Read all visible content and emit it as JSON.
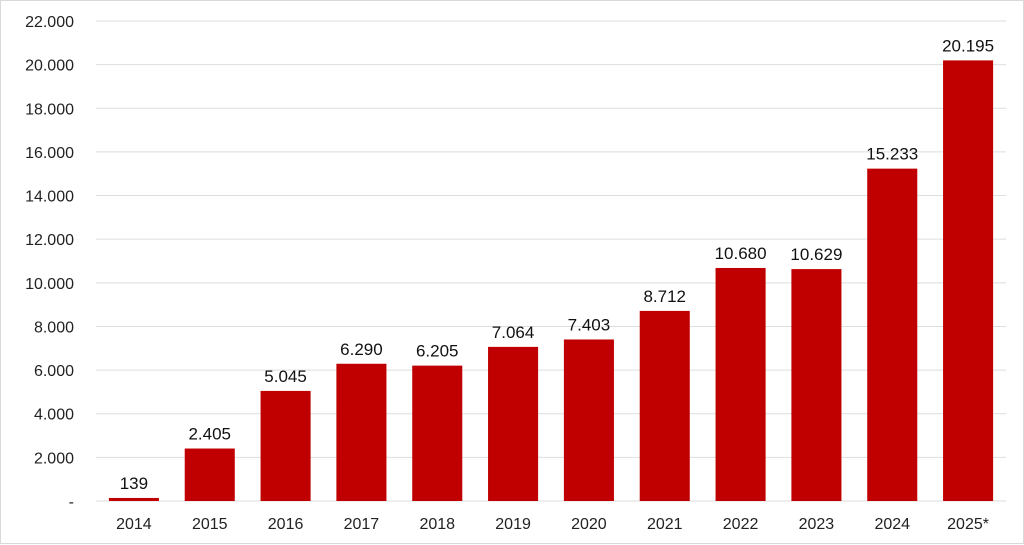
{
  "chart_data": {
    "type": "bar",
    "title": "",
    "xlabel": "",
    "ylabel": "",
    "categories": [
      "2014",
      "2015",
      "2016",
      "2017",
      "2018",
      "2019",
      "2020",
      "2021",
      "2022",
      "2023",
      "2024",
      "2025*"
    ],
    "values": [
      139,
      2405,
      5045,
      6290,
      6205,
      7064,
      7403,
      8712,
      10680,
      10629,
      15233,
      20195
    ],
    "data_labels": [
      "139",
      "2.405",
      "5.045",
      "6.290",
      "6.205",
      "7.064",
      "7.403",
      "8.712",
      "10.680",
      "10.629",
      "15.233",
      "20.195"
    ],
    "ylim": [
      0,
      22000
    ],
    "yticks": [
      0,
      2000,
      4000,
      6000,
      8000,
      10000,
      12000,
      14000,
      16000,
      18000,
      20000,
      22000
    ],
    "ytick_labels": [
      "-",
      "2.000",
      "4.000",
      "6.000",
      "8.000",
      "10.000",
      "12.000",
      "14.000",
      "16.000",
      "18.000",
      "20.000",
      "22.000"
    ],
    "grid": true,
    "legend": "none",
    "bar_color": "#c00000",
    "grid_color": "#dedede"
  }
}
